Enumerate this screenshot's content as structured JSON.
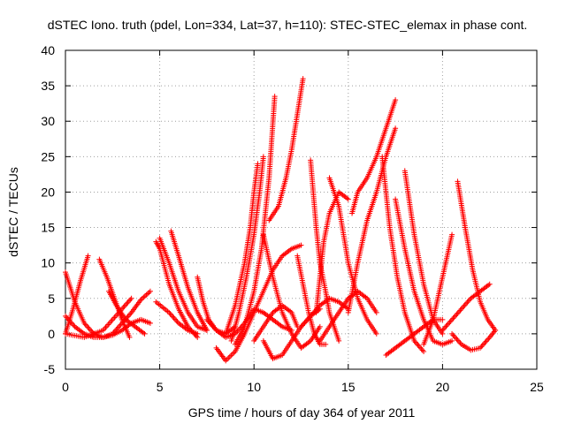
{
  "chart_data": {
    "type": "scatter",
    "title": "dSTEC Iono. truth (pdel, Lon=334, Lat=37, h=110): STEC-STEC_elemax in phase cont.",
    "xlabel": "GPS time / hours of day 364 of year 2011",
    "ylabel": "dSTEC  / TECUs",
    "xlim": [
      0,
      25
    ],
    "ylim": [
      -5,
      40
    ],
    "x_ticks": [
      0,
      5,
      10,
      15,
      20,
      25
    ],
    "y_ticks": [
      -5,
      0,
      5,
      10,
      15,
      20,
      25,
      30,
      35,
      40
    ],
    "grid": true,
    "marker": "+",
    "color": "#ff0000",
    "series": [
      {
        "x": [
          0.0,
          0.5,
          1.0,
          1.5,
          2.0,
          2.5,
          3.0,
          3.5,
          4.0,
          4.5
        ],
        "y": [
          8.7,
          4.5,
          1.5,
          0.0,
          -0.5,
          0.0,
          1.5,
          3.0,
          4.8,
          6.0
        ]
      },
      {
        "x": [
          0.0,
          0.4,
          0.8,
          1.2
        ],
        "y": [
          0.0,
          3.5,
          7.5,
          11.0
        ]
      },
      {
        "x": [
          0.0,
          0.5,
          1.0,
          1.5,
          2.0,
          2.5,
          3.0,
          3.5,
          4.0,
          4.5
        ],
        "y": [
          2.5,
          1.0,
          0.0,
          -0.5,
          -0.5,
          -0.2,
          0.5,
          1.5,
          2.0,
          1.5
        ]
      },
      {
        "x": [
          0.0,
          1.0,
          2.0,
          3.0,
          3.5
        ],
        "y": [
          0.0,
          -0.5,
          0.5,
          3.5,
          5.0
        ]
      },
      {
        "x": [
          1.8,
          2.2,
          2.6,
          3.0,
          3.4
        ],
        "y": [
          10.5,
          8.0,
          5.0,
          2.0,
          -0.5
        ]
      },
      {
        "x": [
          2.3,
          2.7,
          3.2,
          3.7,
          4.2
        ],
        "y": [
          6.0,
          4.0,
          2.0,
          1.0,
          0.0
        ]
      },
      {
        "x": [
          4.8,
          5.0,
          5.5,
          6.0,
          6.5,
          7.0
        ],
        "y": [
          13.0,
          12.0,
          7.0,
          3.5,
          1.0,
          -0.5
        ]
      },
      {
        "x": [
          5.0,
          5.5,
          6.0,
          6.5,
          7.0,
          7.5
        ],
        "y": [
          13.5,
          10.0,
          6.0,
          3.0,
          1.0,
          0.5
        ]
      },
      {
        "x": [
          4.8,
          5.5,
          6.0,
          6.5,
          7.0
        ],
        "y": [
          4.5,
          3.0,
          1.5,
          0.5,
          0.0
        ]
      },
      {
        "x": [
          5.6,
          6.0,
          6.5,
          7.0,
          7.5
        ],
        "y": [
          14.5,
          11.0,
          6.5,
          3.0,
          0.5
        ]
      },
      {
        "x": [
          7.0,
          7.3,
          7.6,
          8.0,
          8.5,
          9.0
        ],
        "y": [
          8.0,
          4.5,
          2.0,
          0.5,
          0.0,
          1.0
        ]
      },
      {
        "x": [
          7.5,
          8.0,
          8.5,
          9.0,
          9.5,
          10.0,
          10.5,
          11.0,
          11.5,
          12.0
        ],
        "y": [
          2.0,
          0.5,
          -0.5,
          0.0,
          1.5,
          3.5,
          3.0,
          2.0,
          1.0,
          0.5
        ]
      },
      {
        "x": [
          8.0,
          8.5,
          9.0,
          9.5,
          10.0,
          10.5,
          11.0,
          11.5,
          12.0,
          12.5
        ],
        "y": [
          -2.0,
          -3.8,
          -2.5,
          0.0,
          3.0,
          6.0,
          9.0,
          11.0,
          12.0,
          12.5
        ]
      },
      {
        "x": [
          8.5,
          9.0,
          9.5,
          9.8,
          10.0,
          10.2
        ],
        "y": [
          0.0,
          4.0,
          10.0,
          15.0,
          20.0,
          24.0
        ]
      },
      {
        "x": [
          8.8,
          9.2,
          9.6,
          10.0,
          10.3,
          10.5
        ],
        "y": [
          -1.0,
          3.0,
          8.0,
          14.0,
          20.0,
          25.0
        ]
      },
      {
        "x": [
          9.0,
          9.5,
          10.0,
          10.4,
          10.8,
          11.1
        ],
        "y": [
          -1.5,
          1.0,
          6.0,
          12.0,
          22.0,
          33.5
        ]
      },
      {
        "x": [
          10.0,
          10.5,
          11.0,
          11.5,
          12.0,
          12.3
        ],
        "y": [
          -1.0,
          1.0,
          3.0,
          4.0,
          3.0,
          1.0
        ]
      },
      {
        "x": [
          10.8,
          11.3,
          11.7,
          12.0,
          12.3,
          12.6
        ],
        "y": [
          16.0,
          18.0,
          22.0,
          26.0,
          31.0,
          36.0
        ]
      },
      {
        "x": [
          10.5,
          11.0,
          11.5,
          12.0,
          12.5,
          13.0,
          13.5
        ],
        "y": [
          14.0,
          8.0,
          3.0,
          0.0,
          -2.0,
          -1.0,
          1.0
        ]
      },
      {
        "x": [
          10.5,
          11.0,
          11.5,
          12.0,
          12.5,
          13.0,
          13.5
        ],
        "y": [
          -1.0,
          -3.5,
          -3.0,
          -1.0,
          1.0,
          2.5,
          3.5
        ]
      },
      {
        "x": [
          12.3,
          12.6,
          12.9,
          13.2,
          13.5,
          13.8
        ],
        "y": [
          11.0,
          7.0,
          3.0,
          0.0,
          -1.5,
          -1.5
        ]
      },
      {
        "x": [
          13.0,
          13.3,
          13.5,
          13.8,
          14.0,
          14.5
        ],
        "y": [
          24.5,
          15.0,
          10.0,
          6.0,
          3.0,
          -1.0
        ]
      },
      {
        "x": [
          13.3,
          13.5,
          13.7,
          14.0,
          14.5,
          15.0
        ],
        "y": [
          3.0,
          8.0,
          13.0,
          17.0,
          20.0,
          19.0
        ]
      },
      {
        "x": [
          12.5,
          13.0,
          13.5,
          14.0,
          14.5,
          15.0
        ],
        "y": [
          1.0,
          2.5,
          4.0,
          5.0,
          4.5,
          3.5
        ]
      },
      {
        "x": [
          14.0,
          14.5,
          15.0,
          15.5,
          16.0,
          16.5
        ],
        "y": [
          22.0,
          18.0,
          10.0,
          5.0,
          2.0,
          0.0
        ]
      },
      {
        "x": [
          13.5,
          14.0,
          14.5,
          15.0,
          15.5,
          16.0,
          16.5
        ],
        "y": [
          -1.0,
          1.0,
          3.0,
          5.0,
          6.0,
          5.0,
          3.0
        ]
      },
      {
        "x": [
          15.0,
          15.5,
          16.0,
          16.5,
          17.0,
          17.5
        ],
        "y": [
          3.0,
          10.0,
          16.0,
          20.0,
          25.0,
          29.0
        ]
      },
      {
        "x": [
          15.2,
          15.5,
          16.0,
          16.5,
          17.0,
          17.5
        ],
        "y": [
          17.0,
          20.0,
          22.0,
          25.0,
          29.0,
          33.0
        ]
      },
      {
        "x": [
          16.8,
          17.2,
          17.6,
          18.0,
          18.5,
          19.0
        ],
        "y": [
          25.0,
          15.0,
          8.0,
          3.0,
          -1.0,
          -2.5
        ]
      },
      {
        "x": [
          17.0,
          17.5,
          18.0,
          18.5,
          19.0,
          19.5,
          20.0
        ],
        "y": [
          -3.0,
          -2.0,
          -1.0,
          0.0,
          1.0,
          2.0,
          2.0
        ]
      },
      {
        "x": [
          17.5,
          18.0,
          18.5,
          19.0,
          19.5,
          20.0,
          20.5
        ],
        "y": [
          19.0,
          12.0,
          6.0,
          2.0,
          -1.0,
          -1.5,
          -1.0
        ]
      },
      {
        "x": [
          18.0,
          18.5,
          19.0,
          19.5,
          20.0
        ],
        "y": [
          23.0,
          14.0,
          7.0,
          2.0,
          0.0
        ]
      },
      {
        "x": [
          19.0,
          19.5,
          20.0,
          20.5
        ],
        "y": [
          -1.5,
          2.0,
          8.0,
          14.0
        ]
      },
      {
        "x": [
          20.0,
          20.5,
          21.0,
          21.5,
          22.0,
          22.5
        ],
        "y": [
          0.5,
          2.0,
          3.5,
          5.0,
          6.0,
          7.0
        ]
      },
      {
        "x": [
          20.8,
          21.2,
          21.6,
          22.0,
          22.4,
          22.8
        ],
        "y": [
          21.5,
          15.0,
          9.0,
          4.5,
          2.0,
          0.5
        ]
      },
      {
        "x": [
          20.5,
          21.0,
          21.5,
          22.0,
          22.5,
          22.8
        ],
        "y": [
          0.0,
          -1.5,
          -2.3,
          -2.0,
          -0.5,
          0.5
        ]
      }
    ]
  }
}
